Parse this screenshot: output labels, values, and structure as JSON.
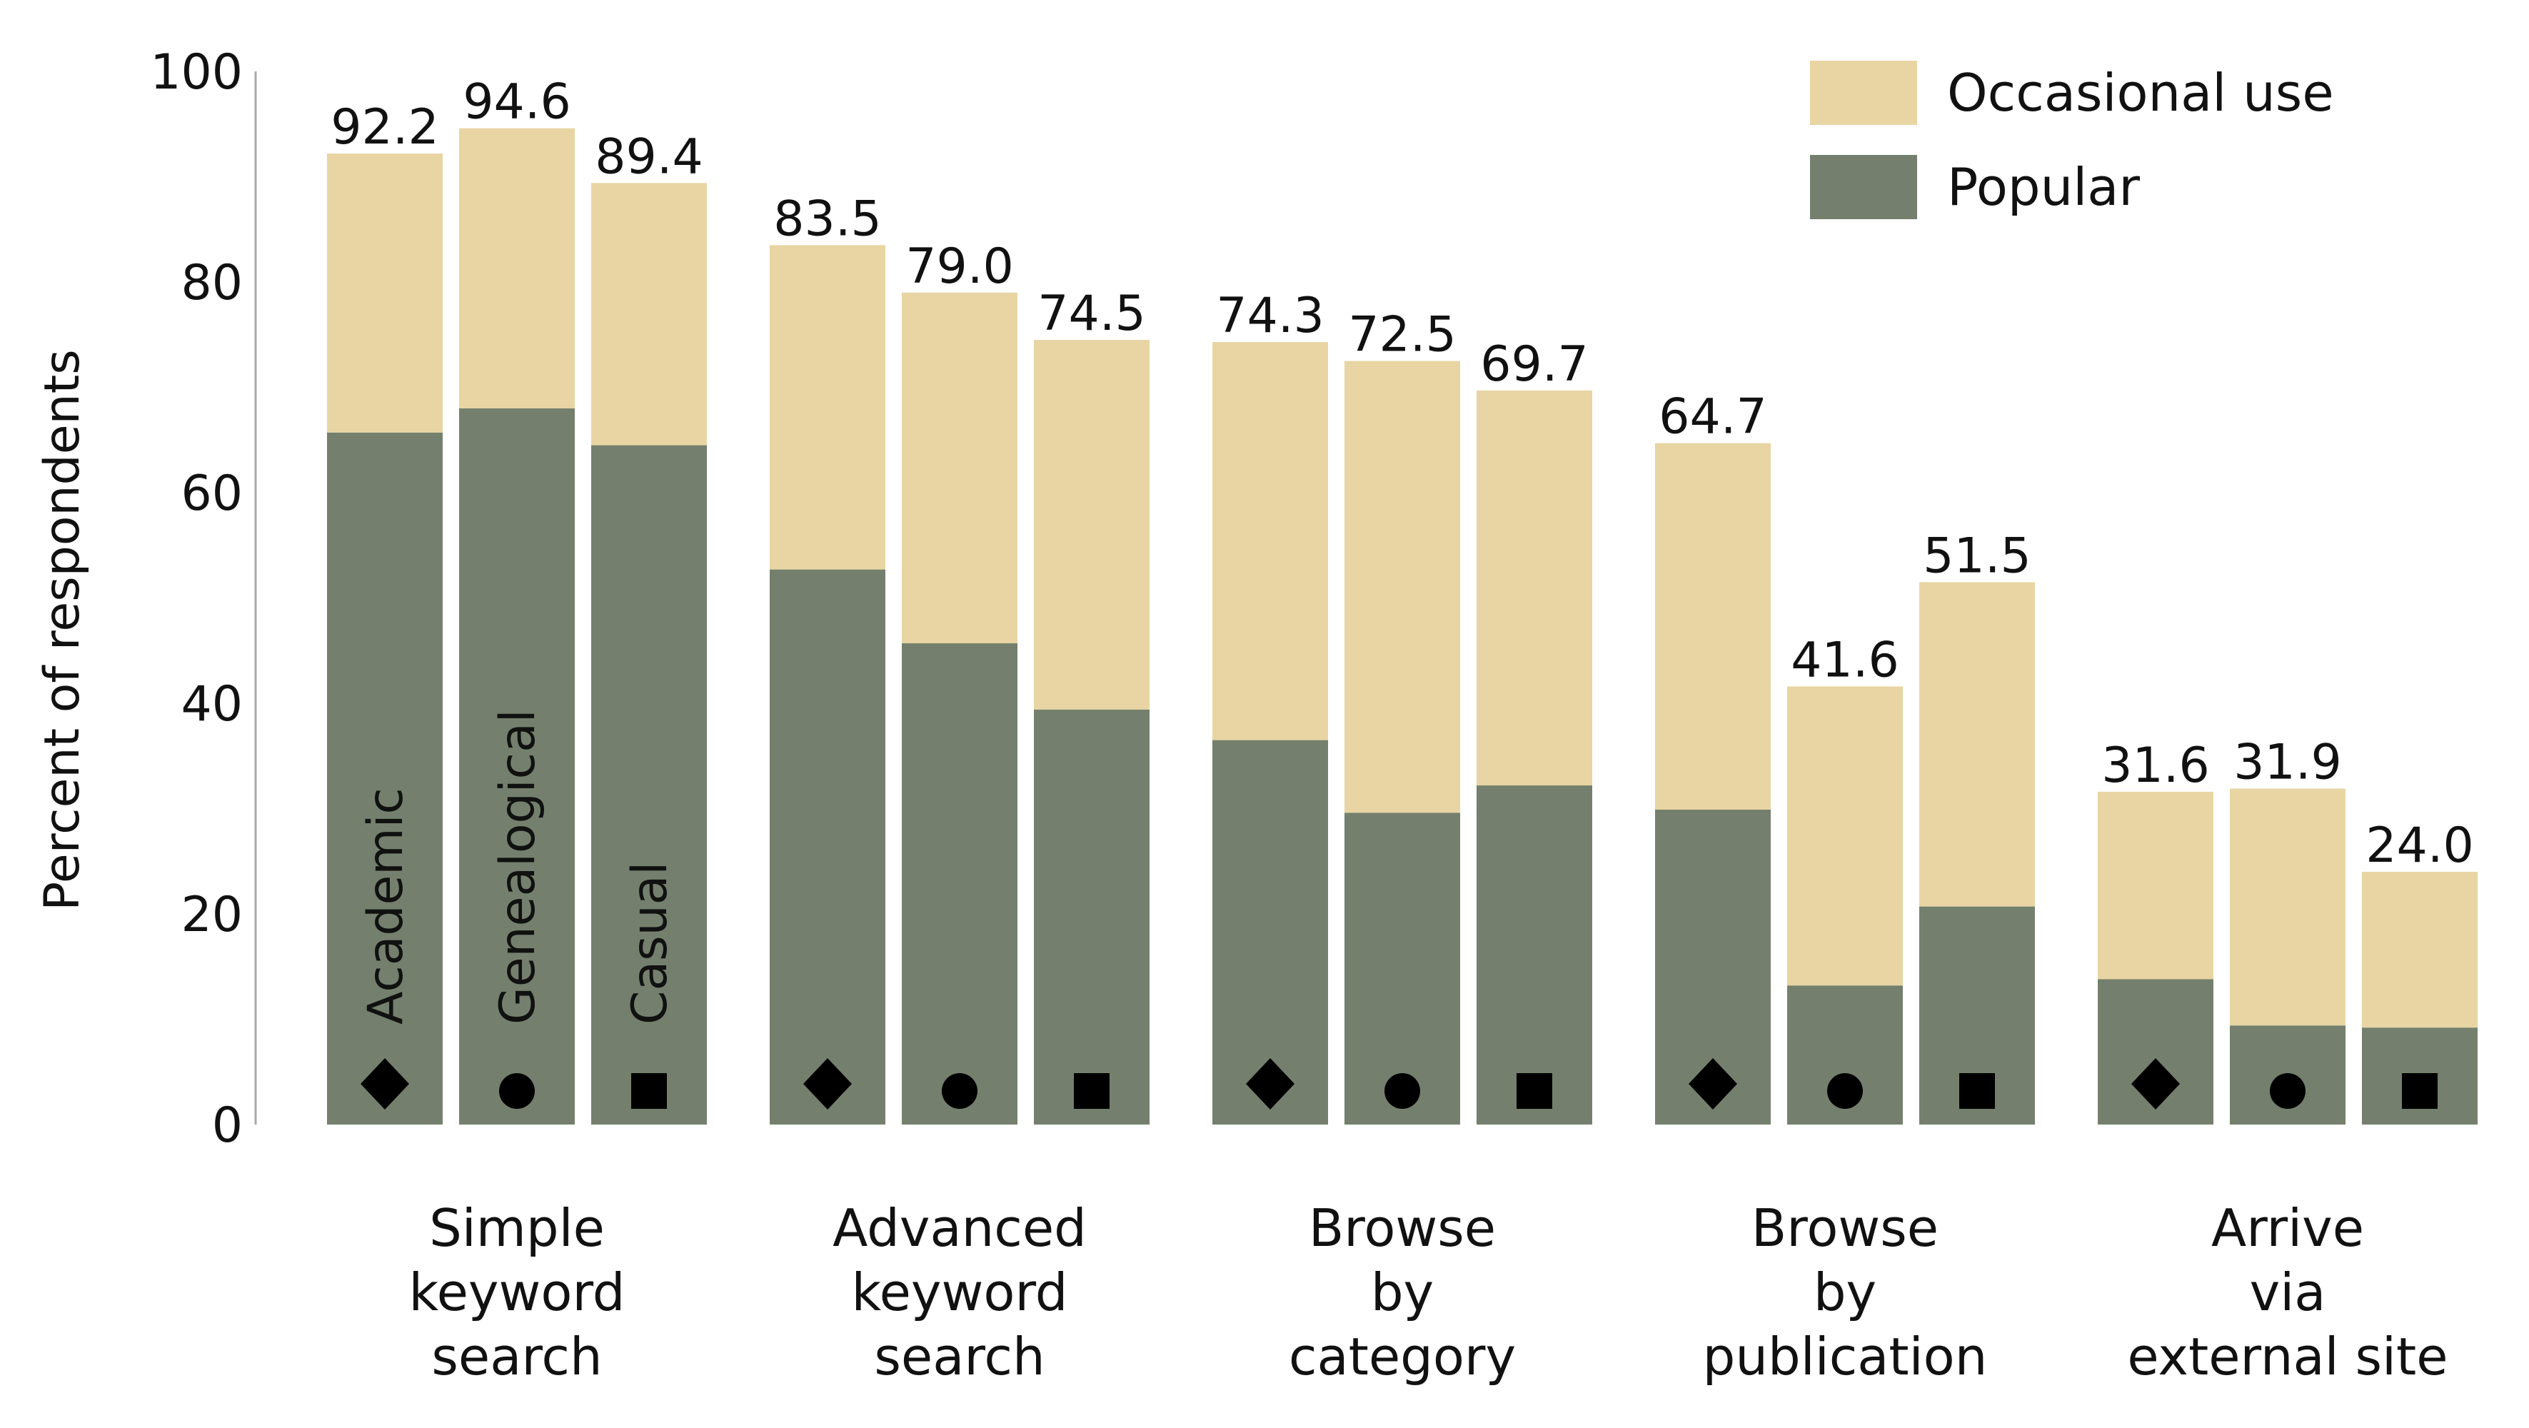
{
  "chart_data": {
    "type": "bar",
    "stacked": true,
    "ylabel": "Percent of respondents",
    "ylim": [
      0,
      100
    ],
    "yticks": [
      0,
      20,
      40,
      60,
      80,
      100
    ],
    "grid": false,
    "legend": {
      "placement": "top-right",
      "entries": [
        {
          "name": "Occasional use",
          "color": "#e8d5a3"
        },
        {
          "name": "Popular",
          "color": "#74806d"
        }
      ]
    },
    "user_types": [
      {
        "label": "Academic",
        "marker": "diamond"
      },
      {
        "label": "Genealogical",
        "marker": "circle"
      },
      {
        "label": "Casual",
        "marker": "square"
      }
    ],
    "categories": [
      {
        "label_lines": [
          "Simple",
          "keyword",
          "search"
        ],
        "popular": [
          65.7,
          68.0,
          64.5
        ],
        "total": [
          92.2,
          94.6,
          89.4
        ],
        "total_labels": [
          "92.2",
          "94.6",
          "89.4"
        ]
      },
      {
        "label_lines": [
          "Advanced",
          "keyword",
          "search"
        ],
        "popular": [
          52.7,
          45.7,
          39.4
        ],
        "total": [
          83.5,
          79.0,
          74.5
        ],
        "total_labels": [
          "83.5",
          "79.0",
          "74.5"
        ]
      },
      {
        "label_lines": [
          "Browse",
          "by",
          "category"
        ],
        "popular": [
          36.5,
          29.6,
          32.2
        ],
        "total": [
          74.3,
          72.5,
          69.7
        ],
        "total_labels": [
          "74.3",
          "72.5",
          "69.7"
        ]
      },
      {
        "label_lines": [
          "Browse",
          "by",
          "publication"
        ],
        "popular": [
          29.9,
          13.2,
          20.7
        ],
        "total": [
          64.7,
          41.6,
          51.5
        ],
        "total_labels": [
          "64.7",
          "41.6",
          "51.5"
        ]
      },
      {
        "label_lines": [
          "Arrive",
          "via",
          "external site"
        ],
        "popular": [
          13.8,
          9.4,
          9.2
        ],
        "total": [
          31.6,
          31.9,
          24.0
        ],
        "total_labels": [
          "31.6",
          "31.9",
          "24.0"
        ]
      }
    ],
    "colors": {
      "popular": "#74806d",
      "occasional": "#e8d5a3",
      "axis": "#aaaaaa",
      "marker": "#000000"
    }
  }
}
